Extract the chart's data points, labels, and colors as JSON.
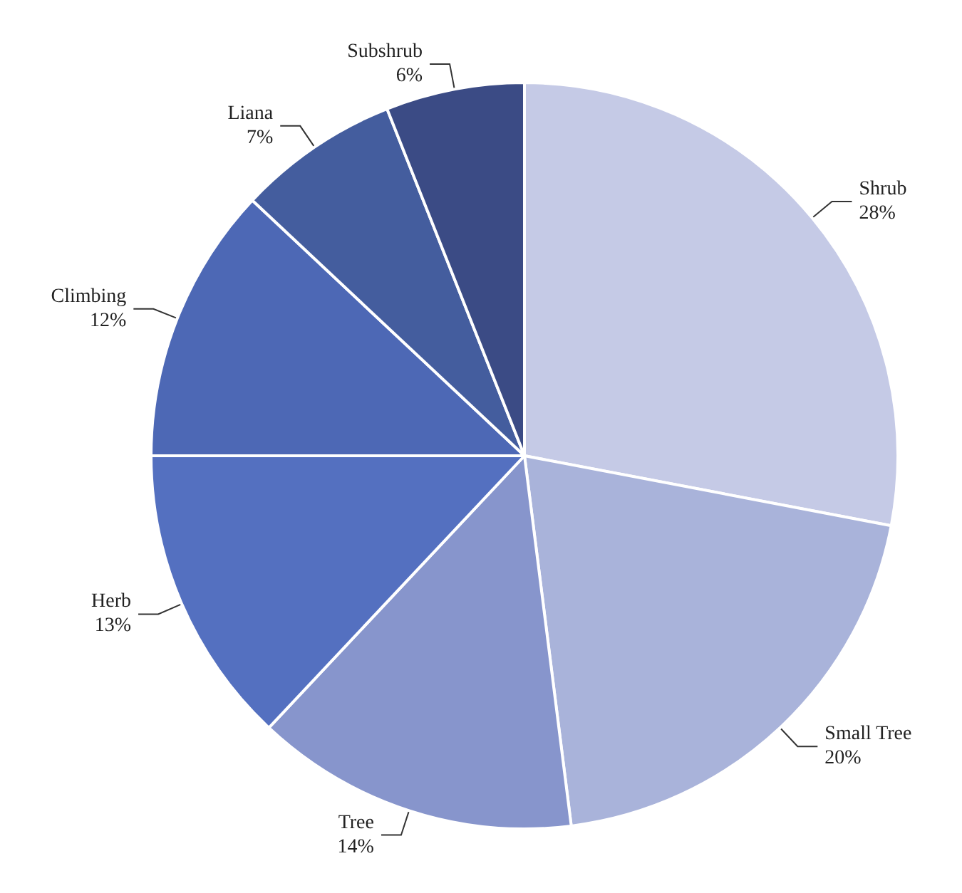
{
  "chart_data": {
    "type": "pie",
    "categories": [
      "Shrub",
      "Small Tree",
      "Tree",
      "Herb",
      "Climbing",
      "Liana",
      "Subshrub"
    ],
    "values": [
      28,
      20,
      14,
      13,
      12,
      7,
      6
    ],
    "value_labels": [
      "28%",
      "20%",
      "14%",
      "13%",
      "12%",
      "7%",
      "6%"
    ],
    "colors": [
      "#c5cae6",
      "#a9b3da",
      "#8795cc",
      "#5470c0",
      "#4d68b5",
      "#445d9e",
      "#3b4b85"
    ]
  }
}
